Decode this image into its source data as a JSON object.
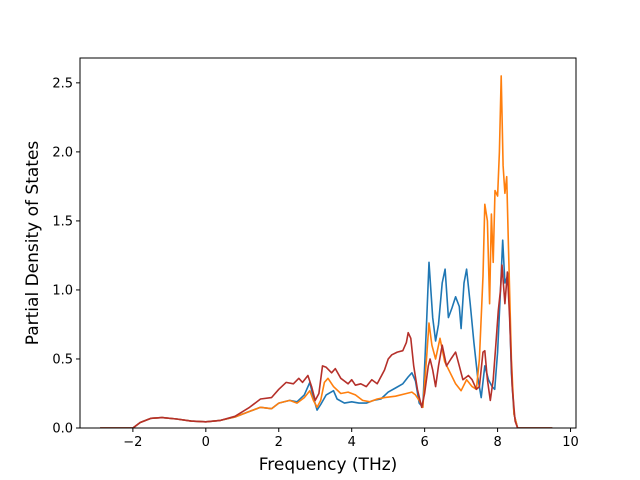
{
  "chart_data": {
    "type": "line",
    "title": "",
    "xlabel": "Frequency (THz)",
    "ylabel": "Partial Density of States",
    "xlim": [
      -3.45,
      10.15
    ],
    "ylim": [
      0,
      2.68
    ],
    "grid": false,
    "legend": "none",
    "x_ticks": [
      -2,
      0,
      2,
      4,
      6,
      8,
      10
    ],
    "y_ticks": [
      0.0,
      0.5,
      1.0,
      1.5,
      2.0,
      2.5
    ],
    "x_tick_labels": [
      "−2",
      "0",
      "2",
      "4",
      "6",
      "8",
      "10"
    ],
    "y_tick_labels": [
      "0.0",
      "0.5",
      "1.0",
      "1.5",
      "2.0",
      "2.5"
    ],
    "series": [
      {
        "color": "#1f77b4",
        "points": [
          [
            -2.9,
            0
          ],
          [
            -2.0,
            0
          ],
          [
            -1.8,
            0.04
          ],
          [
            -1.5,
            0.07
          ],
          [
            -1.2,
            0.075
          ],
          [
            -0.8,
            0.065
          ],
          [
            -0.4,
            0.05
          ],
          [
            0,
            0.045
          ],
          [
            0.4,
            0.055
          ],
          [
            0.8,
            0.08
          ],
          [
            1.2,
            0.12
          ],
          [
            1.5,
            0.15
          ],
          [
            1.8,
            0.14
          ],
          [
            2.0,
            0.18
          ],
          [
            2.3,
            0.2
          ],
          [
            2.5,
            0.19
          ],
          [
            2.7,
            0.24
          ],
          [
            2.85,
            0.33
          ],
          [
            2.95,
            0.22
          ],
          [
            3.05,
            0.13
          ],
          [
            3.15,
            0.17
          ],
          [
            3.3,
            0.24
          ],
          [
            3.5,
            0.27
          ],
          [
            3.6,
            0.21
          ],
          [
            3.8,
            0.18
          ],
          [
            4.0,
            0.19
          ],
          [
            4.2,
            0.18
          ],
          [
            4.4,
            0.18
          ],
          [
            4.6,
            0.2
          ],
          [
            4.8,
            0.21
          ],
          [
            5.0,
            0.26
          ],
          [
            5.2,
            0.29
          ],
          [
            5.4,
            0.32
          ],
          [
            5.55,
            0.37
          ],
          [
            5.65,
            0.4
          ],
          [
            5.75,
            0.34
          ],
          [
            5.85,
            0.18
          ],
          [
            5.95,
            0.15
          ],
          [
            6.05,
            0.75
          ],
          [
            6.12,
            1.2
          ],
          [
            6.22,
            0.8
          ],
          [
            6.3,
            0.63
          ],
          [
            6.38,
            0.75
          ],
          [
            6.48,
            1.05
          ],
          [
            6.56,
            1.15
          ],
          [
            6.65,
            0.8
          ],
          [
            6.75,
            0.87
          ],
          [
            6.85,
            0.95
          ],
          [
            6.95,
            0.88
          ],
          [
            7.0,
            0.72
          ],
          [
            7.08,
            1.05
          ],
          [
            7.15,
            1.15
          ],
          [
            7.25,
            0.9
          ],
          [
            7.35,
            0.62
          ],
          [
            7.45,
            0.38
          ],
          [
            7.55,
            0.22
          ],
          [
            7.65,
            0.45
          ],
          [
            7.75,
            0.35
          ],
          [
            7.85,
            0.3
          ],
          [
            7.92,
            0.28
          ],
          [
            8.0,
            0.55
          ],
          [
            8.08,
            1.0
          ],
          [
            8.14,
            1.36
          ],
          [
            8.2,
            1.05
          ],
          [
            8.3,
            1.12
          ],
          [
            8.38,
            0.4
          ],
          [
            8.45,
            0.1
          ],
          [
            8.55,
            0
          ],
          [
            9.5,
            0
          ]
        ]
      },
      {
        "color": "#ff7f0e",
        "points": [
          [
            -2.9,
            0
          ],
          [
            -2.0,
            0
          ],
          [
            -1.8,
            0.04
          ],
          [
            -1.5,
            0.07
          ],
          [
            -1.2,
            0.075
          ],
          [
            -0.8,
            0.065
          ],
          [
            -0.4,
            0.05
          ],
          [
            0,
            0.045
          ],
          [
            0.4,
            0.055
          ],
          [
            0.8,
            0.08
          ],
          [
            1.2,
            0.12
          ],
          [
            1.5,
            0.15
          ],
          [
            1.8,
            0.14
          ],
          [
            2.0,
            0.18
          ],
          [
            2.3,
            0.2
          ],
          [
            2.5,
            0.18
          ],
          [
            2.7,
            0.22
          ],
          [
            2.85,
            0.27
          ],
          [
            2.95,
            0.2
          ],
          [
            3.05,
            0.15
          ],
          [
            3.15,
            0.2
          ],
          [
            3.25,
            0.33
          ],
          [
            3.35,
            0.36
          ],
          [
            3.5,
            0.3
          ],
          [
            3.7,
            0.25
          ],
          [
            3.9,
            0.26
          ],
          [
            4.1,
            0.24
          ],
          [
            4.3,
            0.2
          ],
          [
            4.5,
            0.19
          ],
          [
            4.7,
            0.21
          ],
          [
            4.9,
            0.22
          ],
          [
            5.2,
            0.23
          ],
          [
            5.5,
            0.25
          ],
          [
            5.65,
            0.26
          ],
          [
            5.75,
            0.24
          ],
          [
            5.85,
            0.2
          ],
          [
            5.95,
            0.15
          ],
          [
            6.05,
            0.5
          ],
          [
            6.12,
            0.76
          ],
          [
            6.2,
            0.6
          ],
          [
            6.3,
            0.5
          ],
          [
            6.42,
            0.65
          ],
          [
            6.55,
            0.48
          ],
          [
            6.7,
            0.4
          ],
          [
            6.85,
            0.32
          ],
          [
            7.0,
            0.27
          ],
          [
            7.15,
            0.35
          ],
          [
            7.3,
            0.3
          ],
          [
            7.42,
            0.28
          ],
          [
            7.5,
            0.5
          ],
          [
            7.6,
            1.1
          ],
          [
            7.65,
            1.62
          ],
          [
            7.72,
            1.5
          ],
          [
            7.78,
            0.9
          ],
          [
            7.83,
            1.55
          ],
          [
            7.88,
            1.2
          ],
          [
            7.93,
            1.72
          ],
          [
            8.0,
            1.68
          ],
          [
            8.05,
            2.0
          ],
          [
            8.1,
            2.55
          ],
          [
            8.15,
            1.9
          ],
          [
            8.2,
            1.7
          ],
          [
            8.25,
            1.82
          ],
          [
            8.3,
            1.3
          ],
          [
            8.38,
            0.5
          ],
          [
            8.45,
            0.1
          ],
          [
            8.55,
            0
          ],
          [
            9.5,
            0
          ]
        ]
      },
      {
        "color": "#b5302a",
        "points": [
          [
            -2.9,
            0
          ],
          [
            -2.0,
            0
          ],
          [
            -1.8,
            0.04
          ],
          [
            -1.5,
            0.07
          ],
          [
            -1.2,
            0.075
          ],
          [
            -0.8,
            0.065
          ],
          [
            -0.4,
            0.05
          ],
          [
            0,
            0.045
          ],
          [
            0.4,
            0.055
          ],
          [
            0.8,
            0.085
          ],
          [
            1.2,
            0.15
          ],
          [
            1.5,
            0.21
          ],
          [
            1.8,
            0.22
          ],
          [
            2.0,
            0.28
          ],
          [
            2.2,
            0.33
          ],
          [
            2.4,
            0.32
          ],
          [
            2.55,
            0.36
          ],
          [
            2.65,
            0.33
          ],
          [
            2.8,
            0.38
          ],
          [
            2.9,
            0.3
          ],
          [
            3.0,
            0.2
          ],
          [
            3.1,
            0.25
          ],
          [
            3.2,
            0.45
          ],
          [
            3.3,
            0.44
          ],
          [
            3.45,
            0.4
          ],
          [
            3.55,
            0.43
          ],
          [
            3.7,
            0.36
          ],
          [
            3.9,
            0.32
          ],
          [
            4.0,
            0.35
          ],
          [
            4.1,
            0.31
          ],
          [
            4.25,
            0.32
          ],
          [
            4.4,
            0.3
          ],
          [
            4.55,
            0.35
          ],
          [
            4.7,
            0.32
          ],
          [
            4.9,
            0.42
          ],
          [
            5.0,
            0.5
          ],
          [
            5.1,
            0.53
          ],
          [
            5.25,
            0.55
          ],
          [
            5.4,
            0.56
          ],
          [
            5.5,
            0.62
          ],
          [
            5.55,
            0.69
          ],
          [
            5.62,
            0.65
          ],
          [
            5.7,
            0.45
          ],
          [
            5.8,
            0.28
          ],
          [
            5.92,
            0.15
          ],
          [
            6.0,
            0.25
          ],
          [
            6.1,
            0.45
          ],
          [
            6.15,
            0.5
          ],
          [
            6.22,
            0.42
          ],
          [
            6.3,
            0.3
          ],
          [
            6.38,
            0.45
          ],
          [
            6.48,
            0.6
          ],
          [
            6.6,
            0.45
          ],
          [
            6.72,
            0.5
          ],
          [
            6.85,
            0.55
          ],
          [
            6.95,
            0.45
          ],
          [
            7.05,
            0.35
          ],
          [
            7.2,
            0.38
          ],
          [
            7.3,
            0.35
          ],
          [
            7.42,
            0.28
          ],
          [
            7.5,
            0.3
          ],
          [
            7.6,
            0.55
          ],
          [
            7.65,
            0.56
          ],
          [
            7.72,
            0.35
          ],
          [
            7.8,
            0.2
          ],
          [
            7.88,
            0.35
          ],
          [
            7.95,
            0.6
          ],
          [
            8.02,
            0.85
          ],
          [
            8.08,
            1.0
          ],
          [
            8.12,
            1.18
          ],
          [
            8.2,
            0.9
          ],
          [
            8.27,
            1.13
          ],
          [
            8.33,
            0.8
          ],
          [
            8.4,
            0.3
          ],
          [
            8.48,
            0.05
          ],
          [
            8.55,
            0
          ],
          [
            9.5,
            0
          ]
        ]
      }
    ]
  }
}
